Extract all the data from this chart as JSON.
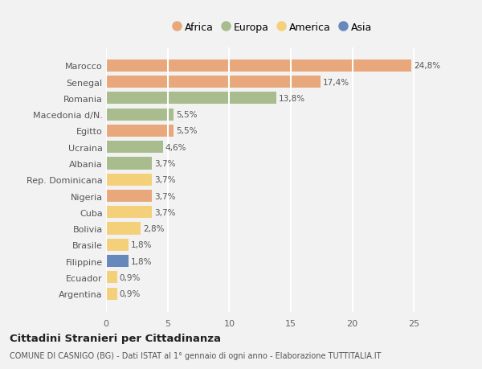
{
  "countries": [
    "Marocco",
    "Senegal",
    "Romania",
    "Macedonia d/N.",
    "Egitto",
    "Ucraina",
    "Albania",
    "Rep. Dominicana",
    "Nigeria",
    "Cuba",
    "Bolivia",
    "Brasile",
    "Filippine",
    "Ecuador",
    "Argentina"
  ],
  "values": [
    24.8,
    17.4,
    13.8,
    5.5,
    5.5,
    4.6,
    3.7,
    3.7,
    3.7,
    3.7,
    2.8,
    1.8,
    1.8,
    0.9,
    0.9
  ],
  "labels": [
    "24,8%",
    "17,4%",
    "13,8%",
    "5,5%",
    "5,5%",
    "4,6%",
    "3,7%",
    "3,7%",
    "3,7%",
    "3,7%",
    "2,8%",
    "1,8%",
    "1,8%",
    "0,9%",
    "0,9%"
  ],
  "continents": [
    "Africa",
    "Africa",
    "Europa",
    "Europa",
    "Africa",
    "Europa",
    "Europa",
    "America",
    "Africa",
    "America",
    "America",
    "America",
    "Asia",
    "America",
    "America"
  ],
  "colors": {
    "Africa": "#E8A87C",
    "Europa": "#A8BC8E",
    "America": "#F5D07A",
    "Asia": "#6688BB"
  },
  "title": "Cittadini Stranieri per Cittadinanza",
  "subtitle": "COMUNE DI CASNIGO (BG) - Dati ISTAT al 1° gennaio di ogni anno - Elaborazione TUTTITALIA.IT",
  "xlim": [
    0,
    27
  ],
  "xticks": [
    0,
    5,
    10,
    15,
    20,
    25
  ],
  "background_color": "#f2f2f2",
  "grid_color": "#ffffff",
  "bar_height": 0.75
}
